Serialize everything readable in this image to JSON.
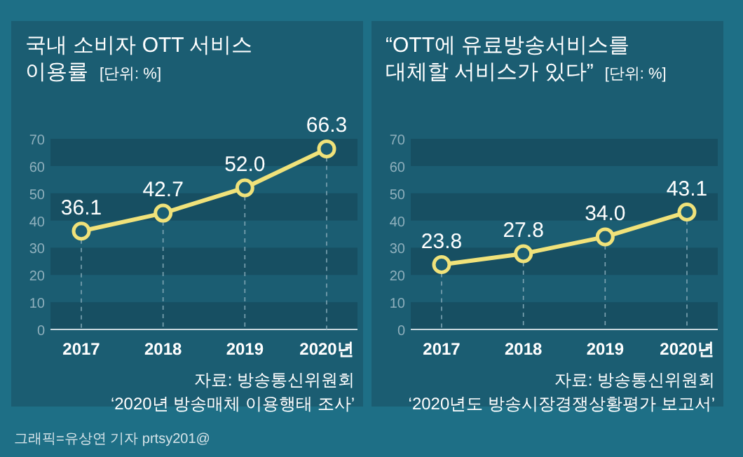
{
  "chart_data": [
    {
      "type": "line",
      "title": "국내 소비자 OTT 서비스 이용률",
      "subtitle": "[단위: %]",
      "categories": [
        "2017",
        "2018",
        "2019",
        "2020년"
      ],
      "series": [
        {
          "color": "#f0e27a",
          "values": [
            36.1,
            42.7,
            52.0,
            66.3
          ],
          "value_labels": [
            "36.1",
            "42.7",
            "52.0",
            "66.3"
          ]
        }
      ],
      "ylim": [
        0,
        70
      ],
      "yticks": [
        0,
        10,
        20,
        30,
        40,
        50,
        60,
        70
      ],
      "marker": "circle",
      "line_style": "solid",
      "bands": [
        {
          "axis": "y",
          "from": 0,
          "to": 10,
          "color": "#174f62"
        },
        {
          "axis": "y",
          "from": 20,
          "to": 30,
          "color": "#174f62"
        },
        {
          "axis": "y",
          "from": 40,
          "to": 50,
          "color": "#174f62"
        },
        {
          "axis": "y",
          "from": 60,
          "to": 70,
          "color": "#174f62"
        }
      ],
      "annotations": [
        "자료: 방송통신위원회",
        "‘2020년 방송매체 이용행태 조사’",
        "그래픽=유상연 기자 prtsy201@"
      ]
    },
    {
      "type": "line",
      "title": "“OTT에 유료방송서비스를 대체할 서비스가 있다”",
      "subtitle": "[단위: %]",
      "categories": [
        "2017",
        "2018",
        "2019",
        "2020년"
      ],
      "series": [
        {
          "color": "#f0e27a",
          "values": [
            23.8,
            27.8,
            34.0,
            43.1
          ],
          "value_labels": [
            "23.8",
            "27.8",
            "34.0",
            "43.1"
          ]
        }
      ],
      "ylim": [
        0,
        70
      ],
      "yticks": [
        0,
        10,
        20,
        30,
        40,
        50,
        60,
        70
      ],
      "marker": "circle",
      "line_style": "solid",
      "bands": [
        {
          "axis": "y",
          "from": 0,
          "to": 10,
          "color": "#174f62"
        },
        {
          "axis": "y",
          "from": 20,
          "to": 30,
          "color": "#174f62"
        },
        {
          "axis": "y",
          "from": 40,
          "to": 50,
          "color": "#174f62"
        },
        {
          "axis": "y",
          "from": 60,
          "to": 70,
          "color": "#174f62"
        }
      ],
      "annotations": [
        "자료: 방송통신위원회",
        "‘2020년도 방송시장경쟁상황평가 보고서’"
      ]
    }
  ]
}
